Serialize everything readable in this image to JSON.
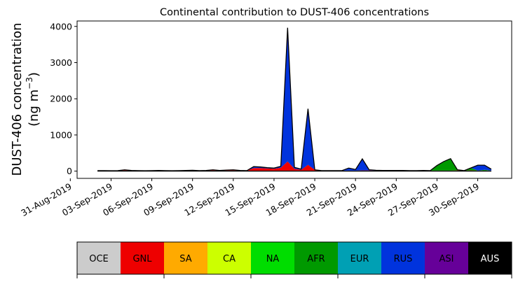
{
  "chart_data": {
    "type": "area",
    "stacked": true,
    "title": "Continental contribution to DUST-406 concentrations",
    "xlabel": "",
    "ylabel_line1": "DUST-406 concentration",
    "ylabel_line2": "(ng m",
    "ylabel_sup": "−3",
    "ylabel_close": ")",
    "ylim": [
      -200,
      4150
    ],
    "yticks": [
      0,
      1000,
      2000,
      3000,
      4000
    ],
    "xlim_days": [
      -0.5,
      31.5
    ],
    "x_axis": "dates, one point every 12 hours from 02-Sep-2019 to 01-Oct-2019",
    "xtick_labels": [
      "31-Aug-2019",
      "03-Sep-2019",
      "06-Sep-2019",
      "09-Sep-2019",
      "12-Sep-2019",
      "15-Sep-2019",
      "18-Sep-2019",
      "21-Sep-2019",
      "24-Sep-2019",
      "27-Sep-2019",
      "30-Sep-2019"
    ],
    "grid": false,
    "legend": "horizontal colorbar below plot",
    "x": [
      "2019-09-02 00:00",
      "2019-09-02 12:00",
      "2019-09-03 00:00",
      "2019-09-03 12:00",
      "2019-09-04 00:00",
      "2019-09-04 12:00",
      "2019-09-05 00:00",
      "2019-09-05 12:00",
      "2019-09-06 00:00",
      "2019-09-06 12:00",
      "2019-09-07 00:00",
      "2019-09-07 12:00",
      "2019-09-08 00:00",
      "2019-09-08 12:00",
      "2019-09-09 00:00",
      "2019-09-09 12:00",
      "2019-09-10 00:00",
      "2019-09-10 12:00",
      "2019-09-11 00:00",
      "2019-09-11 12:00",
      "2019-09-12 00:00",
      "2019-09-12 12:00",
      "2019-09-13 00:00",
      "2019-09-13 12:00",
      "2019-09-14 00:00",
      "2019-09-14 12:00",
      "2019-09-15 00:00",
      "2019-09-15 12:00",
      "2019-09-16 00:00",
      "2019-09-16 12:00",
      "2019-09-17 00:00",
      "2019-09-17 12:00",
      "2019-09-18 00:00",
      "2019-09-18 12:00",
      "2019-09-19 00:00",
      "2019-09-19 12:00",
      "2019-09-20 00:00",
      "2019-09-20 12:00",
      "2019-09-21 00:00",
      "2019-09-21 12:00",
      "2019-09-22 00:00",
      "2019-09-22 12:00",
      "2019-09-23 00:00",
      "2019-09-23 12:00",
      "2019-09-24 00:00",
      "2019-09-24 12:00",
      "2019-09-25 00:00",
      "2019-09-25 12:00",
      "2019-09-26 00:00",
      "2019-09-26 12:00",
      "2019-09-27 00:00",
      "2019-09-27 12:00",
      "2019-09-28 00:00",
      "2019-09-28 12:00",
      "2019-09-29 00:00",
      "2019-09-29 12:00",
      "2019-09-30 00:00",
      "2019-09-30 12:00",
      "2019-10-01 00:00"
    ],
    "series": [
      {
        "name": "OCE",
        "color": "#cccccc",
        "values": [
          5,
          5,
          5,
          5,
          5,
          5,
          5,
          5,
          5,
          5,
          5,
          5,
          5,
          5,
          5,
          5,
          5,
          5,
          5,
          5,
          5,
          5,
          5,
          5,
          5,
          5,
          5,
          5,
          5,
          5,
          5,
          5,
          5,
          5,
          5,
          5,
          5,
          5,
          5,
          5,
          5,
          5,
          5,
          5,
          5,
          5,
          5,
          5,
          5,
          5,
          5,
          5,
          5,
          5,
          5,
          5,
          5,
          5,
          5
        ]
      },
      {
        "name": "GNL",
        "color": "#ee0000",
        "values": [
          10,
          10,
          8,
          10,
          30,
          15,
          10,
          8,
          10,
          15,
          10,
          8,
          10,
          15,
          20,
          10,
          15,
          30,
          15,
          25,
          30,
          15,
          10,
          80,
          80,
          70,
          60,
          90,
          260,
          60,
          30,
          170,
          30,
          10,
          10,
          10,
          10,
          10,
          10,
          15,
          15,
          10,
          10,
          10,
          10,
          10,
          10,
          10,
          15,
          10,
          10,
          10,
          10,
          15,
          10,
          15,
          10,
          10,
          10
        ]
      },
      {
        "name": "SA",
        "color": "#ffaa00",
        "values": [
          0,
          0,
          0,
          0,
          0,
          0,
          0,
          0,
          0,
          0,
          0,
          0,
          0,
          0,
          0,
          0,
          0,
          0,
          0,
          0,
          0,
          0,
          0,
          0,
          0,
          0,
          0,
          0,
          0,
          0,
          0,
          0,
          0,
          0,
          0,
          0,
          0,
          0,
          0,
          0,
          0,
          0,
          0,
          0,
          0,
          0,
          0,
          0,
          0,
          0,
          0,
          0,
          0,
          0,
          0,
          0,
          0,
          0,
          0
        ]
      },
      {
        "name": "CA",
        "color": "#ccff00",
        "values": [
          0,
          0,
          0,
          0,
          0,
          0,
          0,
          0,
          0,
          0,
          0,
          0,
          0,
          0,
          0,
          0,
          0,
          0,
          0,
          0,
          0,
          0,
          0,
          0,
          0,
          0,
          0,
          0,
          0,
          0,
          0,
          0,
          0,
          0,
          0,
          0,
          0,
          0,
          0,
          0,
          0,
          0,
          0,
          0,
          0,
          0,
          0,
          0,
          0,
          0,
          0,
          0,
          0,
          0,
          0,
          0,
          0,
          0,
          0
        ]
      },
      {
        "name": "NA",
        "color": "#00dd00",
        "values": [
          0,
          0,
          0,
          0,
          0,
          0,
          0,
          0,
          0,
          0,
          0,
          0,
          0,
          0,
          0,
          0,
          0,
          0,
          0,
          0,
          0,
          0,
          0,
          0,
          0,
          0,
          0,
          0,
          0,
          0,
          0,
          0,
          0,
          0,
          0,
          0,
          0,
          0,
          0,
          0,
          0,
          0,
          0,
          0,
          0,
          0,
          0,
          0,
          0,
          0,
          0,
          0,
          0,
          0,
          0,
          0,
          0,
          0,
          0
        ]
      },
      {
        "name": "AFR",
        "color": "#009900",
        "values": [
          0,
          0,
          0,
          0,
          0,
          0,
          0,
          0,
          0,
          0,
          0,
          0,
          0,
          0,
          0,
          0,
          0,
          0,
          0,
          0,
          0,
          0,
          0,
          0,
          0,
          0,
          0,
          0,
          0,
          0,
          0,
          0,
          0,
          0,
          0,
          0,
          0,
          0,
          0,
          0,
          0,
          0,
          0,
          0,
          0,
          0,
          0,
          0,
          0,
          0,
          140,
          250,
          330,
          20,
          0,
          70,
          0,
          20,
          0
        ]
      },
      {
        "name": "EUR",
        "color": "#00a0b4",
        "values": [
          0,
          0,
          0,
          0,
          0,
          0,
          0,
          0,
          0,
          0,
          0,
          0,
          0,
          0,
          0,
          0,
          0,
          0,
          0,
          0,
          0,
          0,
          0,
          0,
          0,
          0,
          0,
          0,
          0,
          0,
          0,
          0,
          0,
          0,
          0,
          0,
          0,
          0,
          0,
          0,
          0,
          0,
          0,
          0,
          0,
          0,
          0,
          0,
          0,
          0,
          0,
          0,
          0,
          0,
          0,
          0,
          0,
          0,
          0
        ]
      },
      {
        "name": "RUS",
        "color": "#0033dd",
        "values": [
          0,
          0,
          0,
          0,
          0,
          0,
          0,
          0,
          0,
          0,
          0,
          0,
          0,
          0,
          0,
          0,
          0,
          0,
          0,
          0,
          0,
          0,
          0,
          40,
          30,
          20,
          20,
          40,
          3700,
          40,
          20,
          1550,
          0,
          0,
          0,
          0,
          0,
          70,
          30,
          320,
          20,
          10,
          5,
          5,
          5,
          5,
          0,
          0,
          0,
          0,
          0,
          0,
          0,
          0,
          0,
          0,
          150,
          130,
          40
        ]
      },
      {
        "name": "ASI",
        "color": "#660099",
        "values": [
          0,
          0,
          0,
          0,
          0,
          0,
          0,
          0,
          0,
          0,
          0,
          0,
          0,
          0,
          0,
          0,
          0,
          0,
          0,
          0,
          0,
          0,
          0,
          0,
          0,
          0,
          0,
          0,
          0,
          0,
          0,
          0,
          0,
          0,
          0,
          0,
          0,
          0,
          0,
          0,
          0,
          0,
          0,
          0,
          0,
          0,
          0,
          0,
          0,
          0,
          0,
          0,
          0,
          0,
          0,
          0,
          0,
          0,
          0
        ]
      },
      {
        "name": "AUS",
        "color": "#000000",
        "values": [
          0,
          0,
          0,
          0,
          0,
          0,
          0,
          0,
          0,
          0,
          0,
          0,
          0,
          0,
          0,
          0,
          0,
          0,
          0,
          0,
          0,
          0,
          0,
          0,
          0,
          0,
          0,
          0,
          0,
          0,
          0,
          0,
          0,
          0,
          0,
          0,
          0,
          0,
          0,
          0,
          0,
          0,
          0,
          0,
          0,
          0,
          0,
          0,
          0,
          0,
          0,
          0,
          0,
          0,
          0,
          0,
          0,
          0,
          0
        ]
      }
    ]
  },
  "colorbar": {
    "labels": [
      "OCE",
      "GNL",
      "SA",
      "CA",
      "NA",
      "AFR",
      "EUR",
      "RUS",
      "ASI",
      "AUS"
    ],
    "colors": [
      "#cccccc",
      "#ee0000",
      "#ffaa00",
      "#ccff00",
      "#00dd00",
      "#009900",
      "#00a0b4",
      "#0033dd",
      "#660099",
      "#000000"
    ],
    "text_colors": [
      "#000000",
      "#000000",
      "#000000",
      "#000000",
      "#000000",
      "#000000",
      "#000000",
      "#000000",
      "#000000",
      "#ffffff"
    ]
  }
}
